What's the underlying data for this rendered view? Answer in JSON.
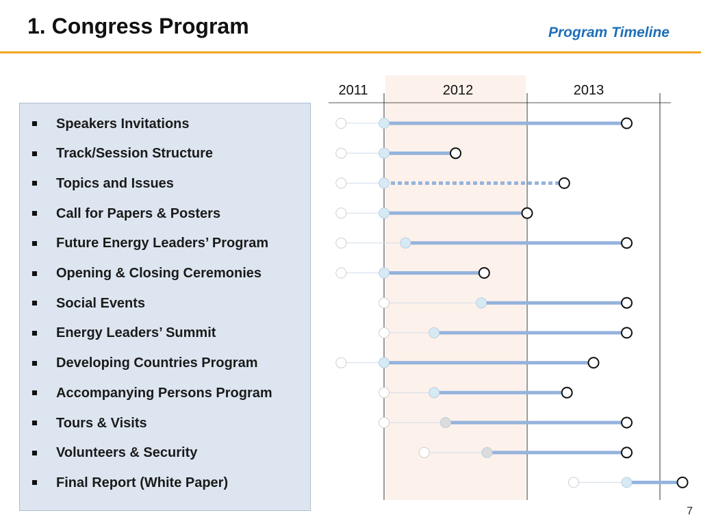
{
  "header": {
    "title": "1. Congress Program",
    "subtitle": "Program Timeline"
  },
  "footer": {
    "page_number": "7"
  },
  "colors": {
    "accent_rule": "#f3a521",
    "subtitle": "#1f6fb8",
    "panel_bg": "#dde6f0",
    "highlight_year_bg": "#fdf1eb",
    "bar": "#94b3dc",
    "start_marker": "#d6eaf5",
    "start_marker_gray": "#dcdcdc"
  },
  "chart_data": {
    "type": "gantt",
    "years": [
      "2011",
      "2012",
      "2013"
    ],
    "highlighted_year": "2012",
    "tasks": [
      {
        "label": "Speakers Invitations",
        "planned_start": 2011.7,
        "start": 2012.0,
        "end": 2013.75,
        "style": "solid"
      },
      {
        "label": "Track/Session Structure",
        "planned_start": 2011.7,
        "start": 2012.0,
        "end": 2012.5,
        "style": "solid"
      },
      {
        "label": "Topics and Issues",
        "planned_start": 2011.7,
        "start": 2012.0,
        "end": 2013.28,
        "style": "dashed"
      },
      {
        "label": "Call for Papers & Posters",
        "planned_start": 2011.7,
        "start": 2012.0,
        "end": 2013.0,
        "style": "solid"
      },
      {
        "label": "Future Energy Leaders’ Program",
        "planned_start": 2011.7,
        "start": 2012.15,
        "end": 2013.75,
        "style": "solid"
      },
      {
        "label": "Opening & Closing Ceremonies",
        "planned_start": 2011.7,
        "start": 2012.0,
        "end": 2012.7,
        "style": "solid"
      },
      {
        "label": "Social Events",
        "planned_start": 2012.0,
        "start": 2012.68,
        "end": 2013.75,
        "style": "solid"
      },
      {
        "label": "Energy Leaders’ Summit",
        "planned_start": 2012.0,
        "start": 2012.35,
        "end": 2013.75,
        "style": "solid"
      },
      {
        "label": "Developing Countries Program",
        "planned_start": 2011.7,
        "start": 2012.0,
        "end": 2013.5,
        "style": "solid"
      },
      {
        "label": "Accompanying Persons Program",
        "planned_start": 2012.0,
        "start": 2012.35,
        "end": 2013.3,
        "style": "solid"
      },
      {
        "label": "Tours & Visits",
        "planned_start": 2012.0,
        "start": 2012.43,
        "end": 2013.75,
        "style": "solid",
        "start_marker": "gray"
      },
      {
        "label": "Volunteers & Security",
        "planned_start": 2012.28,
        "start": 2012.72,
        "end": 2013.75,
        "style": "solid",
        "start_marker": "gray"
      },
      {
        "label": "Final Report (White Paper)",
        "planned_start": 2013.35,
        "start": 2013.75,
        "end": 2014.17,
        "style": "solid"
      }
    ]
  }
}
